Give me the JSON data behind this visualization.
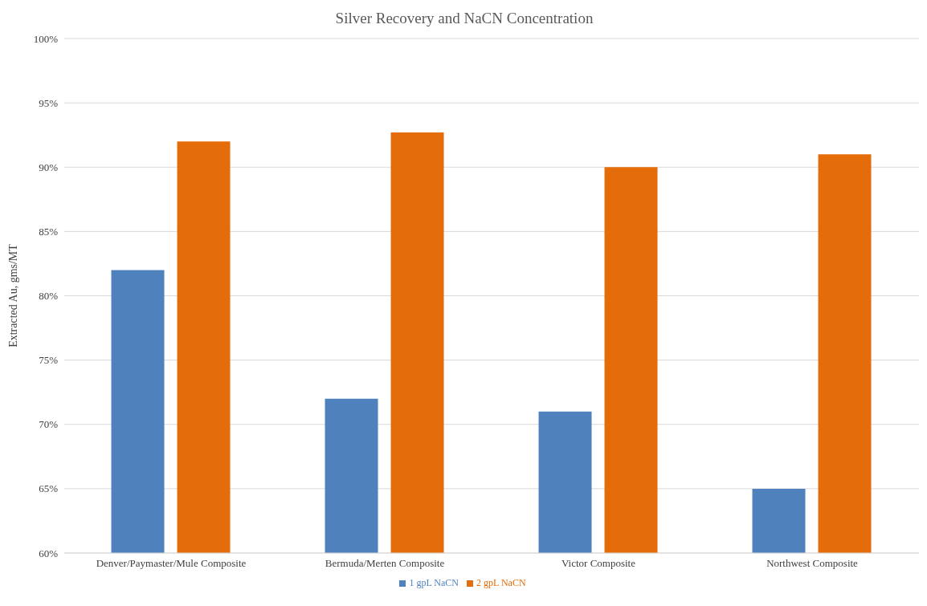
{
  "chart_data": {
    "type": "bar",
    "title": "Silver Recovery and NaCN Concentration",
    "ylabel": "Extracted Au, gms/MT",
    "categories": [
      "Denver/Paymaster/Mule Composite",
      "Bermuda/Merten Composite",
      "Victor Composite",
      "Northwest Composite"
    ],
    "series": [
      {
        "name": "1 gpL NaCN",
        "color": "#4f81bd",
        "values": [
          82,
          72,
          71,
          65
        ]
      },
      {
        "name": "2 gpL NaCN",
        "color": "#e46c0a",
        "values": [
          92,
          92.7,
          90,
          91
        ]
      }
    ],
    "ylim": [
      60,
      100
    ],
    "yticks": [
      {
        "value": 60,
        "label": "60%"
      },
      {
        "value": 65,
        "label": "65%"
      },
      {
        "value": 70,
        "label": "70%"
      },
      {
        "value": 75,
        "label": "75%"
      },
      {
        "value": 80,
        "label": "80%"
      },
      {
        "value": 85,
        "label": "85%"
      },
      {
        "value": 90,
        "label": "90%"
      },
      {
        "value": 95,
        "label": "95%"
      },
      {
        "value": 100,
        "label": "100%"
      }
    ],
    "grid": "y",
    "legend": "bottom"
  }
}
